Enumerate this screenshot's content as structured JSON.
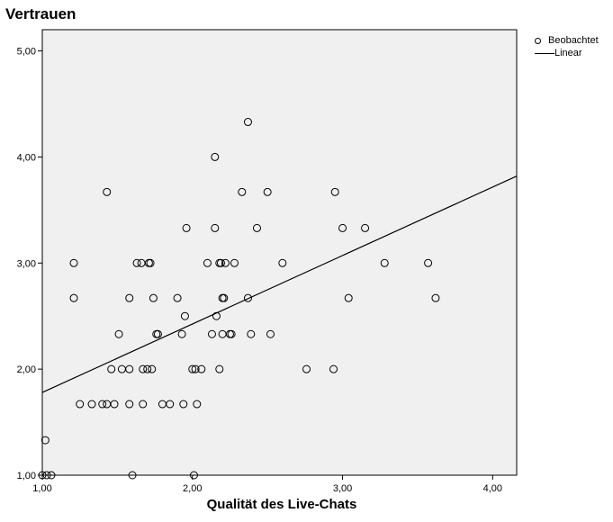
{
  "chart_data": {
    "type": "scatter",
    "ylabel": "Vertrauen",
    "xlabel": "Qualität des Live-Chats",
    "xlim": [
      1.0,
      4.16
    ],
    "ylim": [
      1.0,
      5.2
    ],
    "x_ticks": [
      "1,00",
      "2,00",
      "3,00",
      "4,00"
    ],
    "y_ticks": [
      "1,00",
      "2,00",
      "3,00",
      "4,00",
      "5,00"
    ],
    "legend": {
      "observed": "Beobachtet",
      "fit": "Linear"
    },
    "fit_line": {
      "x": [
        1.0,
        4.16
      ],
      "y": [
        1.78,
        3.82
      ]
    },
    "grid": false,
    "background": "#f0f0f0",
    "points": [
      {
        "x": 1.02,
        "y": 1.33
      },
      {
        "x": 1.0,
        "y": 1.0
      },
      {
        "x": 1.03,
        "y": 1.0
      },
      {
        "x": 1.06,
        "y": 1.0
      },
      {
        "x": 1.21,
        "y": 3.0
      },
      {
        "x": 1.21,
        "y": 2.67
      },
      {
        "x": 1.25,
        "y": 1.67
      },
      {
        "x": 1.33,
        "y": 1.67
      },
      {
        "x": 1.4,
        "y": 1.67
      },
      {
        "x": 1.43,
        "y": 1.67
      },
      {
        "x": 1.43,
        "y": 3.67
      },
      {
        "x": 1.46,
        "y": 2.0
      },
      {
        "x": 1.48,
        "y": 1.67
      },
      {
        "x": 1.51,
        "y": 2.33
      },
      {
        "x": 1.53,
        "y": 2.0
      },
      {
        "x": 1.58,
        "y": 2.0
      },
      {
        "x": 1.58,
        "y": 2.67
      },
      {
        "x": 1.58,
        "y": 1.67
      },
      {
        "x": 1.6,
        "y": 1.0
      },
      {
        "x": 1.63,
        "y": 3.0
      },
      {
        "x": 1.66,
        "y": 3.0
      },
      {
        "x": 1.67,
        "y": 2.0
      },
      {
        "x": 1.67,
        "y": 1.67
      },
      {
        "x": 1.7,
        "y": 2.0
      },
      {
        "x": 1.71,
        "y": 3.0
      },
      {
        "x": 1.72,
        "y": 3.0
      },
      {
        "x": 1.73,
        "y": 2.0
      },
      {
        "x": 1.74,
        "y": 2.67
      },
      {
        "x": 1.76,
        "y": 2.33
      },
      {
        "x": 1.77,
        "y": 2.33
      },
      {
        "x": 1.8,
        "y": 1.67
      },
      {
        "x": 1.85,
        "y": 1.67
      },
      {
        "x": 1.9,
        "y": 2.67
      },
      {
        "x": 1.93,
        "y": 2.33
      },
      {
        "x": 1.94,
        "y": 1.67
      },
      {
        "x": 1.95,
        "y": 2.5
      },
      {
        "x": 1.96,
        "y": 3.33
      },
      {
        "x": 2.0,
        "y": 2.0
      },
      {
        "x": 2.02,
        "y": 2.0
      },
      {
        "x": 2.01,
        "y": 1.0
      },
      {
        "x": 2.03,
        "y": 1.67
      },
      {
        "x": 2.06,
        "y": 2.0
      },
      {
        "x": 2.1,
        "y": 3.0
      },
      {
        "x": 2.13,
        "y": 2.33
      },
      {
        "x": 2.15,
        "y": 3.33
      },
      {
        "x": 2.15,
        "y": 4.0
      },
      {
        "x": 2.16,
        "y": 2.5
      },
      {
        "x": 2.18,
        "y": 2.0
      },
      {
        "x": 2.18,
        "y": 3.0
      },
      {
        "x": 2.19,
        "y": 3.0
      },
      {
        "x": 2.2,
        "y": 2.67
      },
      {
        "x": 2.21,
        "y": 2.67
      },
      {
        "x": 2.2,
        "y": 2.33
      },
      {
        "x": 2.22,
        "y": 3.0
      },
      {
        "x": 2.25,
        "y": 2.33
      },
      {
        "x": 2.26,
        "y": 2.33
      },
      {
        "x": 2.28,
        "y": 3.0
      },
      {
        "x": 2.33,
        "y": 3.67
      },
      {
        "x": 2.37,
        "y": 2.67
      },
      {
        "x": 2.37,
        "y": 4.33
      },
      {
        "x": 2.39,
        "y": 2.33
      },
      {
        "x": 2.43,
        "y": 3.33
      },
      {
        "x": 2.5,
        "y": 3.67
      },
      {
        "x": 2.52,
        "y": 2.33
      },
      {
        "x": 2.6,
        "y": 3.0
      },
      {
        "x": 2.76,
        "y": 2.0
      },
      {
        "x": 2.94,
        "y": 2.0
      },
      {
        "x": 2.95,
        "y": 3.67
      },
      {
        "x": 3.0,
        "y": 3.33
      },
      {
        "x": 3.04,
        "y": 2.67
      },
      {
        "x": 3.15,
        "y": 3.33
      },
      {
        "x": 3.28,
        "y": 3.0
      },
      {
        "x": 3.57,
        "y": 3.0
      },
      {
        "x": 3.62,
        "y": 2.67
      }
    ]
  }
}
